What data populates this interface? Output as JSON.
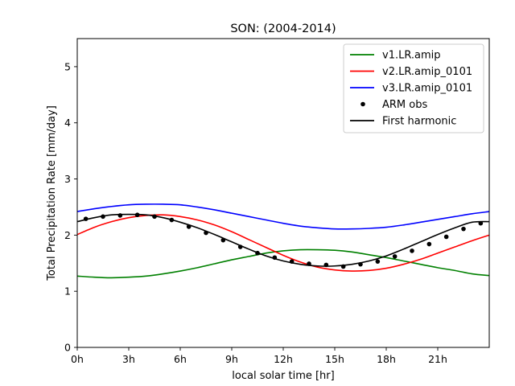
{
  "chart_data": {
    "type": "line",
    "title": "SON: (2004-2014)",
    "xlabel": "local solar time [hr]",
    "ylabel": "Total Precipitation Rate [mm/day]",
    "xlim": [
      0,
      24
    ],
    "ylim": [
      0,
      5.5
    ],
    "xticks": [
      {
        "value": 0,
        "label": "0h"
      },
      {
        "value": 3,
        "label": "3h"
      },
      {
        "value": 6,
        "label": "6h"
      },
      {
        "value": 9,
        "label": "9h"
      },
      {
        "value": 12,
        "label": "12h"
      },
      {
        "value": 15,
        "label": "15h"
      },
      {
        "value": 18,
        "label": "18h"
      },
      {
        "value": 21,
        "label": "21h"
      }
    ],
    "yticks": [
      {
        "value": 0,
        "label": "0"
      },
      {
        "value": 1,
        "label": "1"
      },
      {
        "value": 2,
        "label": "2"
      },
      {
        "value": 3,
        "label": "3"
      },
      {
        "value": 4,
        "label": "4"
      },
      {
        "value": 5,
        "label": "5"
      }
    ],
    "grid": false,
    "legend_position": "top-right",
    "series": [
      {
        "name": "v1.LR.amip",
        "style": "line",
        "color": "#008000",
        "x": [
          0,
          1,
          2,
          3,
          4,
          5,
          6,
          7,
          8,
          9,
          10,
          11,
          12,
          13,
          14,
          15,
          16,
          17,
          18,
          19,
          20,
          21,
          22,
          23,
          24
        ],
        "y": [
          1.27,
          1.25,
          1.24,
          1.25,
          1.27,
          1.31,
          1.36,
          1.42,
          1.49,
          1.56,
          1.62,
          1.68,
          1.72,
          1.74,
          1.74,
          1.73,
          1.7,
          1.65,
          1.6,
          1.54,
          1.48,
          1.42,
          1.37,
          1.31,
          1.28
        ]
      },
      {
        "name": "v2.LR.amip_0101",
        "style": "line",
        "color": "#ff0000",
        "x": [
          0,
          1,
          2,
          3,
          4,
          5,
          6,
          7,
          8,
          9,
          10,
          11,
          12,
          13,
          14,
          15,
          16,
          17,
          18,
          19,
          20,
          21,
          22,
          23,
          24
        ],
        "y": [
          2.01,
          2.14,
          2.24,
          2.31,
          2.35,
          2.36,
          2.33,
          2.27,
          2.18,
          2.06,
          1.92,
          1.78,
          1.64,
          1.52,
          1.43,
          1.38,
          1.36,
          1.37,
          1.41,
          1.48,
          1.57,
          1.68,
          1.79,
          1.9,
          2.0
        ]
      },
      {
        "name": "v3.LR.amip_0101",
        "style": "line",
        "color": "#0000ff",
        "x": [
          0,
          1,
          2,
          3,
          4,
          5,
          6,
          7,
          8,
          9,
          10,
          11,
          12,
          13,
          14,
          15,
          16,
          17,
          18,
          19,
          20,
          21,
          22,
          23,
          24
        ],
        "y": [
          2.42,
          2.47,
          2.51,
          2.54,
          2.55,
          2.55,
          2.54,
          2.5,
          2.45,
          2.39,
          2.33,
          2.27,
          2.21,
          2.16,
          2.13,
          2.11,
          2.11,
          2.12,
          2.14,
          2.18,
          2.23,
          2.28,
          2.33,
          2.38,
          2.42
        ]
      },
      {
        "name": "ARM obs",
        "style": "points",
        "color": "#000000",
        "x": [
          0.5,
          1.5,
          2.5,
          3.5,
          4.5,
          5.5,
          6.5,
          7.5,
          8.5,
          9.5,
          10.5,
          11.5,
          12.5,
          13.5,
          14.5,
          15.5,
          16.5,
          17.5,
          18.5,
          19.5,
          20.5,
          21.5,
          22.5,
          23.5
        ],
        "y": [
          2.29,
          2.33,
          2.35,
          2.36,
          2.33,
          2.27,
          2.15,
          2.04,
          1.91,
          1.79,
          1.68,
          1.6,
          1.53,
          1.49,
          1.47,
          1.44,
          1.48,
          1.53,
          1.62,
          1.72,
          1.84,
          1.97,
          2.11,
          2.21
        ]
      },
      {
        "name": "First harmonic",
        "style": "line",
        "color": "#000000",
        "x": [
          0,
          1,
          2,
          3,
          4,
          5,
          6,
          7,
          8,
          9,
          10,
          11,
          12,
          13,
          14,
          15,
          16,
          17,
          18,
          19,
          20,
          21,
          22,
          23,
          24
        ],
        "y": [
          2.24,
          2.31,
          2.36,
          2.37,
          2.36,
          2.31,
          2.23,
          2.13,
          2.01,
          1.88,
          1.75,
          1.63,
          1.54,
          1.48,
          1.45,
          1.45,
          1.48,
          1.54,
          1.63,
          1.75,
          1.88,
          2.01,
          2.13,
          2.23,
          2.24
        ]
      }
    ]
  }
}
